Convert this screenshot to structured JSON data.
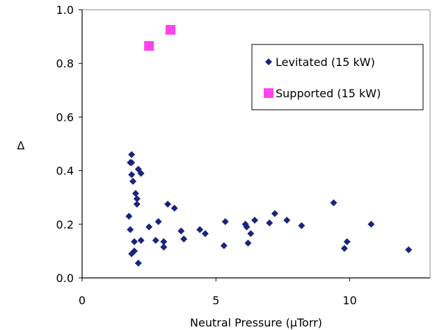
{
  "chart_data": {
    "type": "scatter",
    "xlabel": "Neutral Pressure (μTorr)",
    "ylabel": "Δ",
    "xlim": [
      0,
      13
    ],
    "ylim": [
      0,
      1
    ],
    "x_ticks": [
      "0",
      "5",
      "10"
    ],
    "y_ticks": [
      "0.0",
      "0.2",
      "0.4",
      "0.6",
      "0.8",
      "1.0"
    ],
    "grid": false,
    "legend_position": "top-right",
    "series": [
      {
        "name": "Levitated (15 kW)",
        "marker": "diamond",
        "color": "#1a237e",
        "points": [
          [
            1.85,
            0.46
          ],
          [
            1.8,
            0.43
          ],
          [
            1.85,
            0.43
          ],
          [
            1.85,
            0.385
          ],
          [
            2.1,
            0.405
          ],
          [
            2.2,
            0.39
          ],
          [
            1.9,
            0.36
          ],
          [
            2.0,
            0.315
          ],
          [
            2.05,
            0.295
          ],
          [
            2.05,
            0.275
          ],
          [
            1.75,
            0.23
          ],
          [
            1.8,
            0.18
          ],
          [
            1.95,
            0.135
          ],
          [
            2.2,
            0.14
          ],
          [
            2.5,
            0.19
          ],
          [
            2.85,
            0.21
          ],
          [
            2.75,
            0.14
          ],
          [
            3.05,
            0.135
          ],
          [
            3.05,
            0.115
          ],
          [
            1.85,
            0.09
          ],
          [
            1.95,
            0.1
          ],
          [
            2.1,
            0.055
          ],
          [
            3.2,
            0.275
          ],
          [
            3.45,
            0.26
          ],
          [
            3.7,
            0.175
          ],
          [
            3.8,
            0.145
          ],
          [
            4.4,
            0.18
          ],
          [
            4.6,
            0.165
          ],
          [
            5.3,
            0.12
          ],
          [
            5.35,
            0.21
          ],
          [
            6.1,
            0.2
          ],
          [
            6.15,
            0.19
          ],
          [
            6.2,
            0.13
          ],
          [
            6.3,
            0.165
          ],
          [
            6.45,
            0.215
          ],
          [
            7.0,
            0.205
          ],
          [
            7.2,
            0.24
          ],
          [
            7.65,
            0.215
          ],
          [
            8.2,
            0.195
          ],
          [
            9.4,
            0.28
          ],
          [
            9.8,
            0.11
          ],
          [
            9.9,
            0.135
          ],
          [
            10.8,
            0.2
          ],
          [
            12.2,
            0.105
          ]
        ]
      },
      {
        "name": "Supported (15 kW)",
        "marker": "square",
        "color": "#ff44ee",
        "points": [
          [
            2.5,
            0.865
          ],
          [
            3.3,
            0.925
          ]
        ]
      }
    ]
  }
}
